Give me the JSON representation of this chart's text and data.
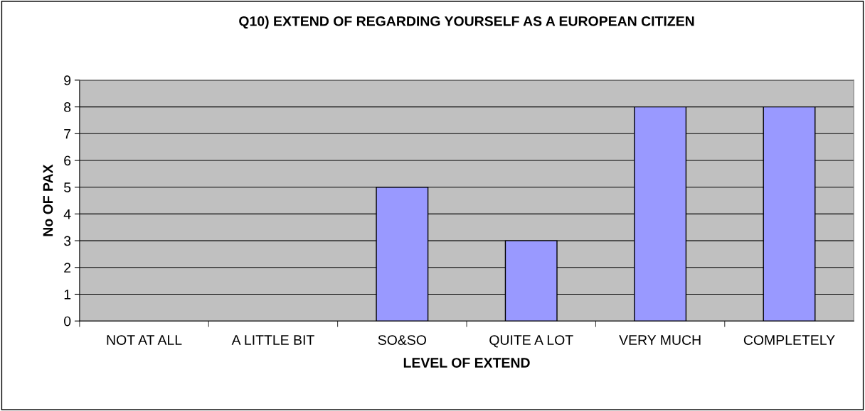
{
  "chart_data": {
    "type": "bar",
    "title": "Q10) EXTEND OF REGARDING YOURSELF AS A EUROPEAN CITIZEN",
    "xlabel": "LEVEL OF EXTEND",
    "ylabel": "No OF PAX",
    "categories": [
      "NOT AT ALL",
      "A LITTLE BIT",
      "SO&SO",
      "QUITE A LOT",
      "VERY MUCH",
      "COMPLETELY"
    ],
    "values": [
      0,
      0,
      5,
      3,
      8,
      8
    ],
    "color": "#9999ff",
    "ylim": [
      0,
      9
    ],
    "yticks": [
      0,
      1,
      2,
      3,
      4,
      5,
      6,
      7,
      8,
      9
    ],
    "grid": "y"
  }
}
